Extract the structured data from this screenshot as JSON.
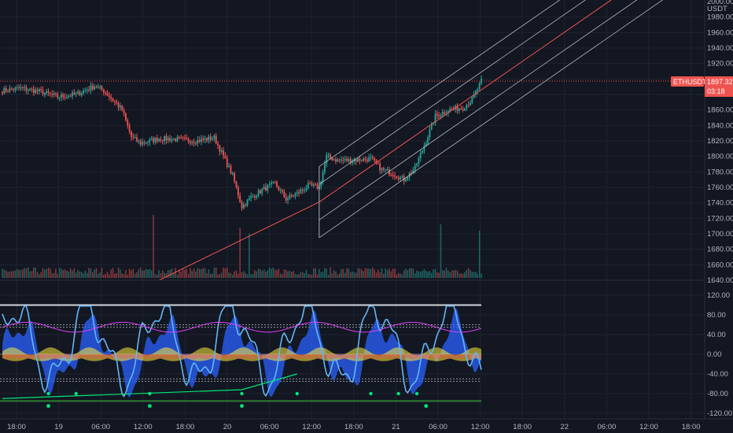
{
  "chart_data": [
    {
      "type": "candlestick",
      "symbol": "ETHUSDT",
      "currency": "USDT",
      "last_price": "1897.32",
      "countdown": "03:18",
      "y_axis": {
        "min": 1640,
        "max": 2000,
        "ticks": [
          "1980.00",
          "1960.00",
          "1940.00",
          "1920.00",
          "1900.00",
          "1880.00",
          "1860.00",
          "1840.00",
          "1820.00",
          "1800.00",
          "1780.00",
          "1760.00",
          "1740.00",
          "1720.00",
          "1700.00",
          "1680.00",
          "1660.00",
          "1640.00"
        ],
        "top_partial_label": "2000.00"
      },
      "x_axis": {
        "ticks": [
          "18:00",
          "19",
          "06:00",
          "12:00",
          "18:00",
          "20",
          "06:00",
          "12:00",
          "18:00",
          "21",
          "06:00",
          "12:00",
          "18:00",
          "22",
          "06:00",
          "12:00",
          "18:00"
        ]
      },
      "price_keyframes": [
        {
          "i": 0,
          "p": 1885
        },
        {
          "i": 10,
          "p": 1888
        },
        {
          "i": 20,
          "p": 1884
        },
        {
          "i": 30,
          "p": 1877
        },
        {
          "i": 40,
          "p": 1880
        },
        {
          "i": 50,
          "p": 1891
        },
        {
          "i": 55,
          "p": 1885
        },
        {
          "i": 60,
          "p": 1873
        },
        {
          "i": 65,
          "p": 1860
        },
        {
          "i": 70,
          "p": 1825
        },
        {
          "i": 75,
          "p": 1817
        },
        {
          "i": 85,
          "p": 1823
        },
        {
          "i": 95,
          "p": 1822
        },
        {
          "i": 105,
          "p": 1820
        },
        {
          "i": 115,
          "p": 1824
        },
        {
          "i": 120,
          "p": 1800
        },
        {
          "i": 125,
          "p": 1775
        },
        {
          "i": 130,
          "p": 1735
        },
        {
          "i": 135,
          "p": 1747
        },
        {
          "i": 142,
          "p": 1758
        },
        {
          "i": 148,
          "p": 1765
        },
        {
          "i": 154,
          "p": 1745
        },
        {
          "i": 160,
          "p": 1752
        },
        {
          "i": 166,
          "p": 1762
        },
        {
          "i": 172,
          "p": 1760
        },
        {
          "i": 176,
          "p": 1800
        },
        {
          "i": 182,
          "p": 1795
        },
        {
          "i": 190,
          "p": 1795
        },
        {
          "i": 200,
          "p": 1797
        },
        {
          "i": 206,
          "p": 1783
        },
        {
          "i": 212,
          "p": 1778
        },
        {
          "i": 218,
          "p": 1770
        },
        {
          "i": 224,
          "p": 1785
        },
        {
          "i": 230,
          "p": 1820
        },
        {
          "i": 235,
          "p": 1852
        },
        {
          "i": 242,
          "p": 1860
        },
        {
          "i": 250,
          "p": 1863
        },
        {
          "i": 255,
          "p": 1873
        },
        {
          "i": 260,
          "p": 1897
        }
      ],
      "regression_channel": {
        "start_index": 172,
        "end_index": 260,
        "start_mid": 1741,
        "end_mid": 1886,
        "offsets": [
          -46,
          -23,
          23,
          46
        ],
        "median_color": "#ef5350",
        "band_color": "#d1d4dc"
      },
      "trend_line": {
        "start_index": 85,
        "start_price": 1640,
        "end_index": 172,
        "end_price": 1741,
        "color": "#ef5350"
      },
      "volume_spikes": [
        {
          "i": 82,
          "v": 1
        },
        {
          "i": 129,
          "v": 0.8
        },
        {
          "i": 134,
          "v": 0.7
        },
        {
          "i": 238,
          "v": 0.85
        },
        {
          "i": 259,
          "v": 0.75
        }
      ]
    },
    {
      "type": "oscillator",
      "y_axis": {
        "min": -120,
        "max": 120,
        "ticks": [
          "120.00",
          "80.00",
          "40.00",
          "0.00",
          "-40.00",
          "-80.00",
          "-120.00"
        ]
      },
      "levels": [
        100,
        60,
        55,
        -50,
        -55
      ],
      "wave_colors": {
        "wave": "#2962ff",
        "line": "#64b5f6",
        "mfi": "#e040fb",
        "trend": "#ffeb3b",
        "zero_red": "#ef5350",
        "signal_green": "#00e676"
      },
      "oversold_dots": [
        25,
        40,
        80,
        130,
        160,
        200,
        215,
        225
      ],
      "signal_dots": [
        25,
        80,
        130,
        230
      ]
    }
  ]
}
